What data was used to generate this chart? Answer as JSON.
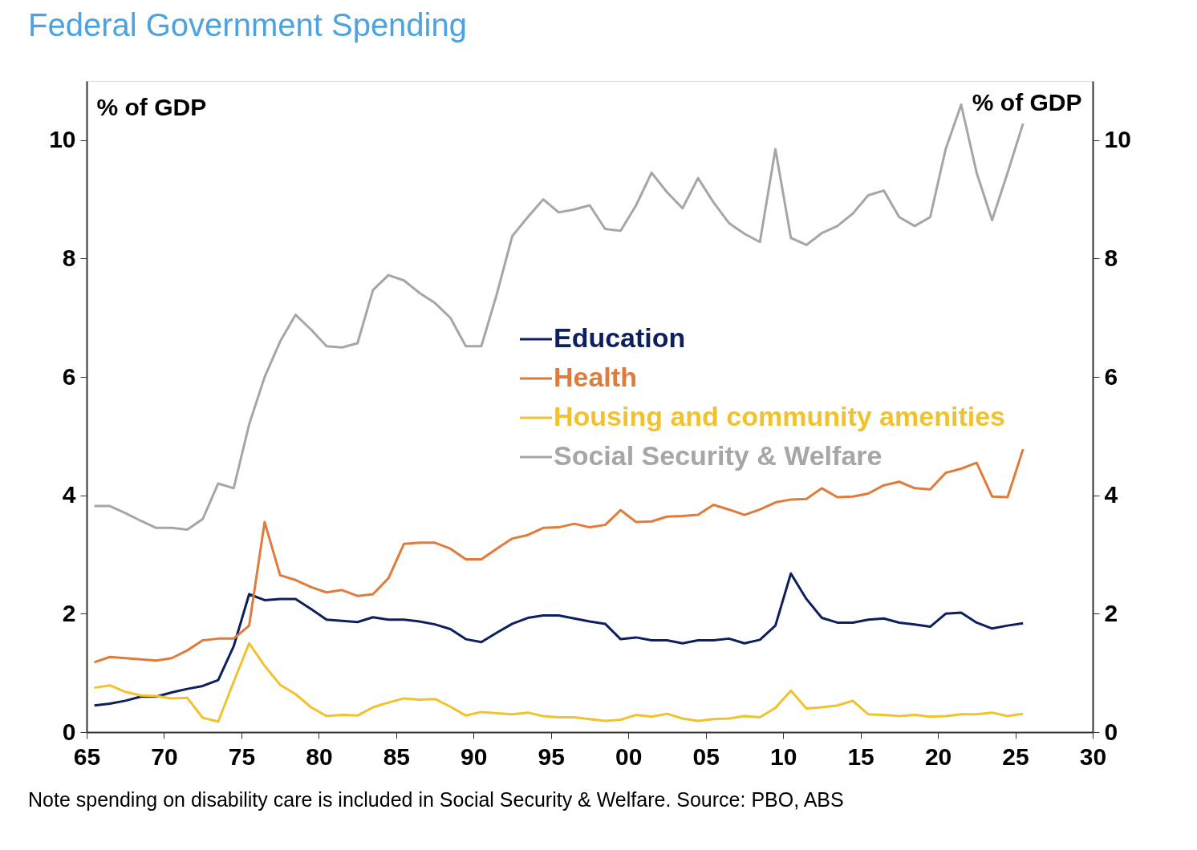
{
  "chart_data": {
    "type": "line",
    "title": "Federal Government Spending",
    "ylabel": "% of GDP",
    "y2label": "% of GDP",
    "annotations": [
      "Note spending on disability care is included in Social Security & Welfare. Source: PBO, ABS"
    ],
    "x": [
      1965.5,
      1966.5,
      1967.5,
      1968.5,
      1969.5,
      1970.5,
      1971.5,
      1972.5,
      1973.5,
      1974.5,
      1975.5,
      1976.5,
      1977.5,
      1978.5,
      1979.5,
      1980.5,
      1981.5,
      1982.5,
      1983.5,
      1984.5,
      1985.5,
      1986.5,
      1987.5,
      1988.5,
      1989.5,
      1990.5,
      1991.5,
      1992.5,
      1993.5,
      1994.5,
      1995.5,
      1996.5,
      1997.5,
      1998.5,
      1999.5,
      2000.5,
      2001.5,
      2002.5,
      2003.5,
      2004.5,
      2005.5,
      2006.5,
      2007.5,
      2008.5,
      2009.5,
      2010.5,
      2011.5,
      2012.5,
      2013.5,
      2014.5,
      2015.5,
      2016.5,
      2017.5,
      2018.5,
      2019.5,
      2020.5,
      2021.5,
      2022.5,
      2023.5,
      2024.5,
      2025.5
    ],
    "series": [
      {
        "name": "Education",
        "color": "#0d1f5c",
        "values": [
          0.45,
          0.48,
          0.53,
          0.6,
          0.6,
          0.67,
          0.73,
          0.78,
          0.88,
          1.45,
          2.33,
          2.23,
          2.25,
          2.25,
          2.08,
          1.9,
          1.88,
          1.86,
          1.94,
          1.9,
          1.9,
          1.87,
          1.82,
          1.74,
          1.57,
          1.52,
          1.68,
          1.83,
          1.93,
          1.97,
          1.97,
          1.92,
          1.87,
          1.83,
          1.57,
          1.6,
          1.55,
          1.55,
          1.5,
          1.55,
          1.55,
          1.58,
          1.5,
          1.56,
          1.8,
          2.68,
          2.25,
          1.93,
          1.85,
          1.85,
          1.9,
          1.92,
          1.85,
          1.82,
          1.78,
          2.0,
          2.02,
          1.85,
          1.75,
          1.8,
          1.84
        ]
      },
      {
        "name": "Health",
        "color": "#e07b39",
        "values": [
          1.18,
          1.27,
          1.25,
          1.23,
          1.21,
          1.25,
          1.38,
          1.55,
          1.58,
          1.58,
          1.8,
          3.55,
          2.65,
          2.57,
          2.45,
          2.36,
          2.4,
          2.3,
          2.33,
          2.6,
          3.18,
          3.2,
          3.2,
          3.1,
          2.92,
          2.92,
          3.1,
          3.27,
          3.33,
          3.45,
          3.46,
          3.52,
          3.46,
          3.5,
          3.75,
          3.55,
          3.56,
          3.64,
          3.65,
          3.67,
          3.84,
          3.76,
          3.67,
          3.76,
          3.88,
          3.93,
          3.94,
          4.12,
          3.97,
          3.98,
          4.03,
          4.17,
          4.23,
          4.12,
          4.1,
          4.38,
          4.45,
          4.55,
          3.98,
          3.97,
          4.78
        ]
      },
      {
        "name": "Housing and community amenities",
        "color": "#f2c12e",
        "values": [
          0.75,
          0.79,
          0.68,
          0.62,
          0.61,
          0.57,
          0.58,
          0.24,
          0.18,
          0.85,
          1.5,
          1.12,
          0.8,
          0.64,
          0.42,
          0.27,
          0.29,
          0.28,
          0.42,
          0.5,
          0.57,
          0.55,
          0.56,
          0.43,
          0.28,
          0.34,
          0.32,
          0.3,
          0.33,
          0.27,
          0.25,
          0.25,
          0.22,
          0.19,
          0.21,
          0.29,
          0.26,
          0.31,
          0.23,
          0.19,
          0.22,
          0.23,
          0.27,
          0.25,
          0.41,
          0.7,
          0.4,
          0.42,
          0.45,
          0.53,
          0.3,
          0.29,
          0.27,
          0.29,
          0.26,
          0.27,
          0.3,
          0.3,
          0.33,
          0.27,
          0.31
        ]
      },
      {
        "name": "Social Security & Welfare",
        "color": "#a6a6a6",
        "values": [
          3.82,
          3.82,
          3.7,
          3.57,
          3.45,
          3.45,
          3.42,
          3.6,
          4.2,
          4.12,
          5.2,
          6.0,
          6.6,
          7.05,
          6.8,
          6.52,
          6.5,
          6.57,
          7.47,
          7.72,
          7.63,
          7.42,
          7.25,
          7.0,
          6.52,
          6.52,
          7.4,
          8.38,
          8.7,
          9.0,
          8.78,
          8.83,
          8.9,
          8.5,
          8.47,
          8.9,
          9.45,
          9.12,
          8.85,
          9.36,
          8.95,
          8.6,
          8.42,
          8.28,
          9.85,
          8.35,
          8.23,
          8.43,
          8.55,
          8.76,
          9.07,
          9.15,
          8.7,
          8.55,
          8.7,
          9.85,
          10.6,
          9.45,
          8.65,
          9.45,
          10.28
        ]
      }
    ],
    "xlim": [
      1965,
      2030
    ],
    "xticks": [
      {
        "value": 1965,
        "label": "65"
      },
      {
        "value": 1970,
        "label": "70"
      },
      {
        "value": 1975,
        "label": "75"
      },
      {
        "value": 1980,
        "label": "80"
      },
      {
        "value": 1985,
        "label": "85"
      },
      {
        "value": 1990,
        "label": "90"
      },
      {
        "value": 1995,
        "label": "95"
      },
      {
        "value": 2000,
        "label": "00"
      },
      {
        "value": 2005,
        "label": "05"
      },
      {
        "value": 2010,
        "label": "10"
      },
      {
        "value": 2015,
        "label": "15"
      },
      {
        "value": 2020,
        "label": "20"
      },
      {
        "value": 2025,
        "label": "25"
      },
      {
        "value": 2030,
        "label": "30"
      }
    ],
    "ylim": [
      0,
      11
    ],
    "yticks": [
      0,
      2,
      4,
      6,
      8,
      10
    ],
    "y2lim": [
      0,
      11
    ],
    "y2ticks": [
      0,
      2,
      4,
      6,
      8,
      10
    ],
    "grid": false,
    "legend": "top",
    "marker": "none",
    "line_style": "solid"
  }
}
